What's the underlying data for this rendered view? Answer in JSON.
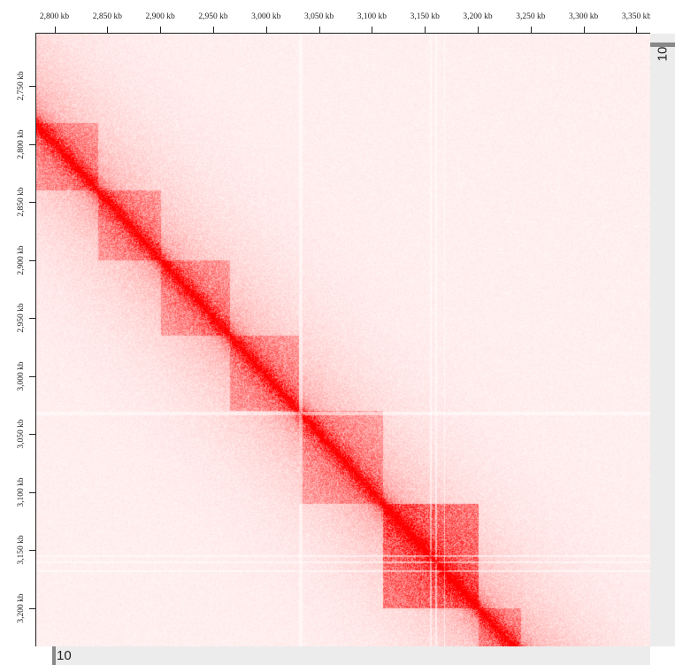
{
  "top_axis": {
    "labels": [
      "2,800 kb",
      "2,850 kb",
      "2,900 kb",
      "2,950 kb",
      "3,000 kb",
      "3,050 kb",
      "3,100 kb",
      "3,150 kb",
      "3,200 kb",
      "3,250 kb",
      "3,300 kb",
      "3,350 kb"
    ],
    "start_kb": 2782,
    "end_kb": 3363
  },
  "left_axis": {
    "labels": [
      "2,750 kb",
      "2,800 kb",
      "2,850 kb",
      "2,900 kb",
      "2,950 kb",
      "3,000 kb",
      "3,050 kb",
      "3,100 kb",
      "3,150 kb",
      "3,200 kb"
    ],
    "start_kb": 2705,
    "end_kb": 3233
  },
  "heatmap": {
    "color": "#ff0000",
    "background": "#ffffff",
    "domains_kb": [
      [
        2782,
        2840
      ],
      [
        2840,
        2900
      ],
      [
        2900,
        2965
      ],
      [
        2965,
        3030
      ],
      [
        3030,
        3110
      ],
      [
        3110,
        3200
      ],
      [
        3200,
        3240
      ]
    ]
  },
  "vertical_track": {
    "label": "10"
  },
  "horizontal_track": {
    "label": "10"
  }
}
